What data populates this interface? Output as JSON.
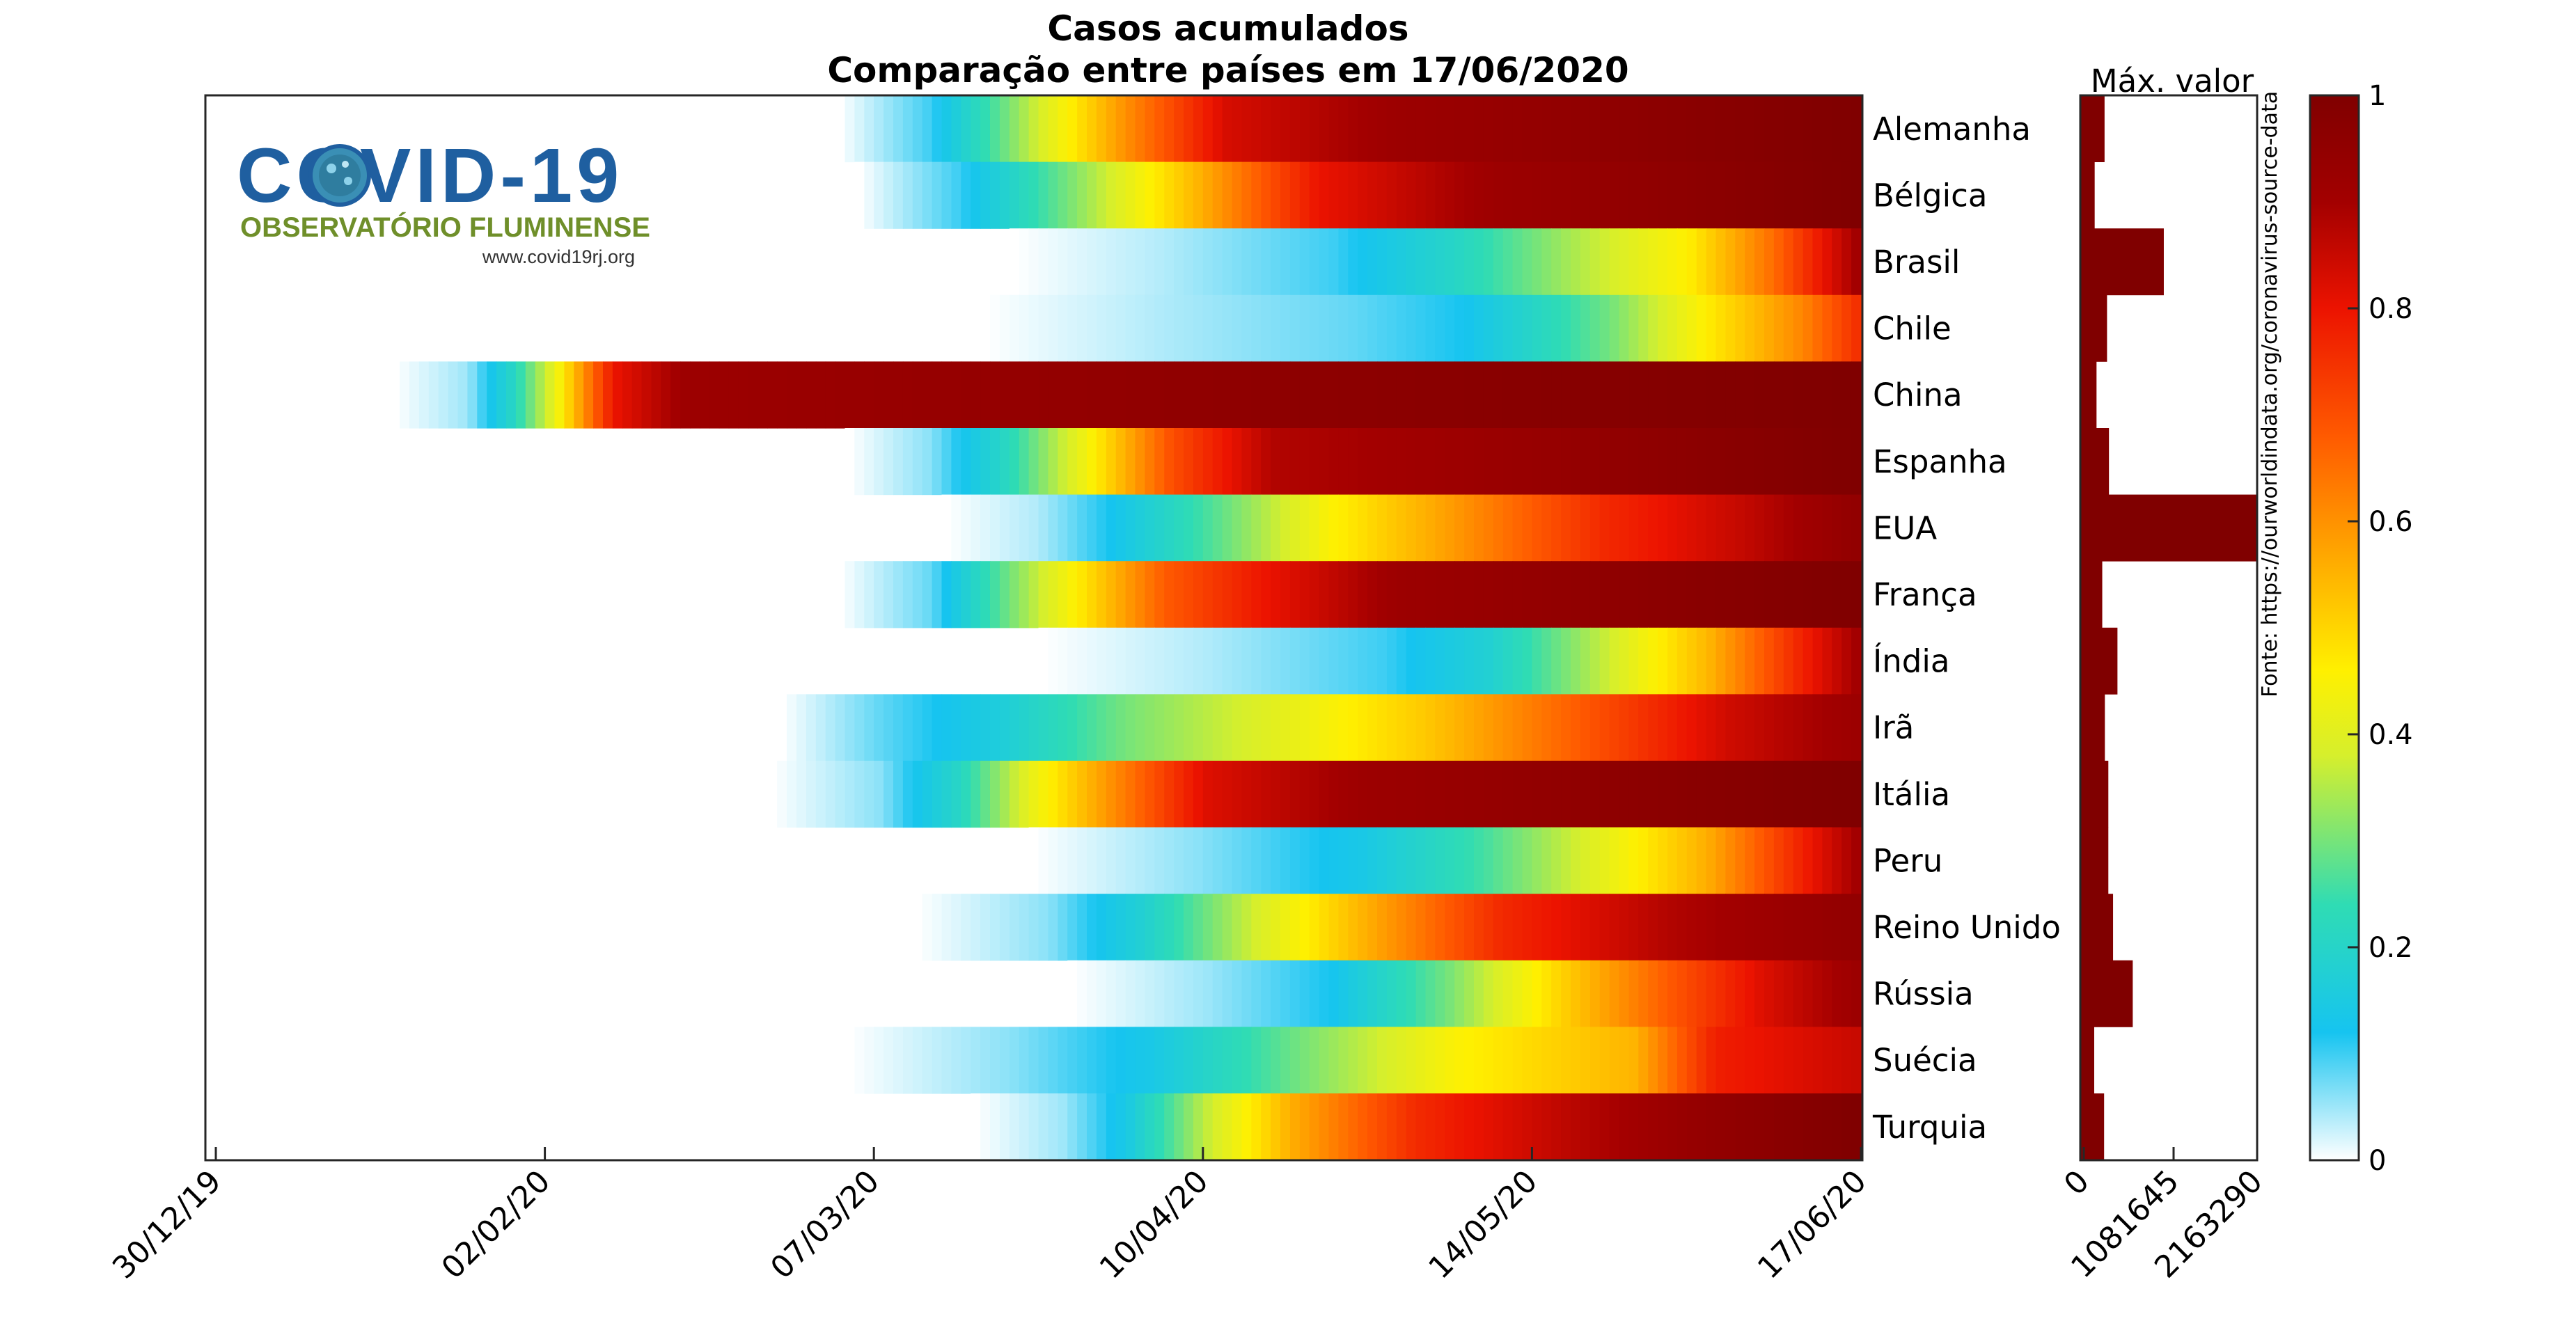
{
  "logo": {
    "title": "COVID-19",
    "subtitle": "OBSERVATÓRIO FLUMINENSE",
    "url": "www.covid19rj.org",
    "colors": {
      "title": "#1f5fa0",
      "subtitle": "#6f8f2a",
      "virus": "#2f7d9f"
    }
  },
  "chart_data": {
    "type": "heatmap",
    "title": "Casos acumulados",
    "subtitle": "Comparação entre países em 17/06/2020",
    "x_tick_labels": [
      "30/12/19",
      "02/02/20",
      "07/03/20",
      "10/04/20",
      "14/05/20",
      "17/06/20"
    ],
    "x_tick_day_offsets": [
      0,
      34,
      68,
      102,
      136,
      170
    ],
    "end_date": "17/06/2020",
    "colorscale": {
      "min": 0,
      "max": 1,
      "ticks": [
        0,
        0.2,
        0.4,
        0.6,
        0.8,
        1
      ],
      "stops": [
        [
          0,
          "#ffffff"
        ],
        [
          0.12,
          "#16c4f0"
        ],
        [
          0.24,
          "#2fdcb4"
        ],
        [
          0.38,
          "#d6ef2c"
        ],
        [
          0.46,
          "#fff000"
        ],
        [
          0.56,
          "#ffad00"
        ],
        [
          0.68,
          "#ff5a00"
        ],
        [
          0.8,
          "#ec1300"
        ],
        [
          0.9,
          "#a30000"
        ],
        [
          1,
          "#800000"
        ]
      ]
    },
    "countries": [
      {
        "name": "Alemanha",
        "start_day": 64,
        "profile": [
          [
            0,
            0
          ],
          [
            0.09,
            0.1
          ],
          [
            0.18,
            0.34
          ],
          [
            0.28,
            0.6
          ],
          [
            0.38,
            0.83
          ],
          [
            0.55,
            0.92
          ],
          [
            1,
            1
          ]
        ]
      },
      {
        "name": "Bélgica",
        "start_day": 66,
        "profile": [
          [
            0,
            0
          ],
          [
            0.1,
            0.1
          ],
          [
            0.22,
            0.32
          ],
          [
            0.34,
            0.55
          ],
          [
            0.46,
            0.8
          ],
          [
            0.64,
            0.92
          ],
          [
            1,
            1
          ]
        ]
      },
      {
        "name": "Brasil",
        "start_day": 82,
        "profile": [
          [
            0,
            0
          ],
          [
            0.18,
            0.04
          ],
          [
            0.38,
            0.1
          ],
          [
            0.52,
            0.2
          ],
          [
            0.66,
            0.34
          ],
          [
            0.8,
            0.46
          ],
          [
            0.9,
            0.65
          ],
          [
            1,
            0.9
          ]
        ]
      },
      {
        "name": "Chile",
        "start_day": 79,
        "profile": [
          [
            0,
            0
          ],
          [
            0.2,
            0.04
          ],
          [
            0.42,
            0.08
          ],
          [
            0.55,
            0.12
          ],
          [
            0.72,
            0.3
          ],
          [
            0.84,
            0.48
          ],
          [
            0.94,
            0.62
          ],
          [
            1,
            0.75
          ]
        ]
      },
      {
        "name": "China",
        "start_day": 18,
        "profile": [
          [
            0,
            0
          ],
          [
            0.05,
            0.05
          ],
          [
            0.08,
            0.2
          ],
          [
            0.11,
            0.42
          ],
          [
            0.15,
            0.8
          ],
          [
            0.2,
            0.92
          ],
          [
            1,
            1
          ]
        ]
      },
      {
        "name": "Espanha",
        "start_day": 65,
        "profile": [
          [
            0,
            0
          ],
          [
            0.08,
            0.06
          ],
          [
            0.15,
            0.2
          ],
          [
            0.23,
            0.42
          ],
          [
            0.32,
            0.7
          ],
          [
            0.42,
            0.88
          ],
          [
            1,
            1
          ]
        ]
      },
      {
        "name": "EUA",
        "start_day": 75,
        "profile": [
          [
            0,
            0
          ],
          [
            0.1,
            0.04
          ],
          [
            0.18,
            0.12
          ],
          [
            0.3,
            0.28
          ],
          [
            0.42,
            0.45
          ],
          [
            0.55,
            0.58
          ],
          [
            0.72,
            0.76
          ],
          [
            0.88,
            0.86
          ],
          [
            1,
            0.95
          ]
        ]
      },
      {
        "name": "França",
        "start_day": 64,
        "profile": [
          [
            0,
            0
          ],
          [
            0.09,
            0.08
          ],
          [
            0.16,
            0.28
          ],
          [
            0.24,
            0.48
          ],
          [
            0.32,
            0.68
          ],
          [
            0.42,
            0.8
          ],
          [
            0.55,
            0.92
          ],
          [
            1,
            1
          ]
        ]
      },
      {
        "name": "Índia",
        "start_day": 85,
        "profile": [
          [
            0,
            0
          ],
          [
            0.2,
            0.04
          ],
          [
            0.42,
            0.1
          ],
          [
            0.55,
            0.18
          ],
          [
            0.7,
            0.38
          ],
          [
            0.82,
            0.55
          ],
          [
            0.92,
            0.75
          ],
          [
            1,
            0.9
          ]
        ]
      },
      {
        "name": "Irã",
        "start_day": 58,
        "profile": [
          [
            0,
            0
          ],
          [
            0.09,
            0.08
          ],
          [
            0.2,
            0.16
          ],
          [
            0.32,
            0.3
          ],
          [
            0.48,
            0.42
          ],
          [
            0.6,
            0.52
          ],
          [
            0.76,
            0.7
          ],
          [
            0.88,
            0.84
          ],
          [
            1,
            0.92
          ]
        ]
      },
      {
        "name": "Itália",
        "start_day": 57,
        "profile": [
          [
            0,
            0
          ],
          [
            0.1,
            0.06
          ],
          [
            0.17,
            0.2
          ],
          [
            0.24,
            0.42
          ],
          [
            0.32,
            0.62
          ],
          [
            0.4,
            0.82
          ],
          [
            0.55,
            0.92
          ],
          [
            1,
            1
          ]
        ]
      },
      {
        "name": "Peru",
        "start_day": 84,
        "profile": [
          [
            0,
            0
          ],
          [
            0.2,
            0.06
          ],
          [
            0.4,
            0.14
          ],
          [
            0.55,
            0.26
          ],
          [
            0.7,
            0.42
          ],
          [
            0.82,
            0.56
          ],
          [
            0.92,
            0.75
          ],
          [
            1,
            0.9
          ]
        ]
      },
      {
        "name": "Reino Unido",
        "start_day": 72,
        "profile": [
          [
            0,
            0
          ],
          [
            0.14,
            0.06
          ],
          [
            0.24,
            0.18
          ],
          [
            0.36,
            0.38
          ],
          [
            0.48,
            0.56
          ],
          [
            0.62,
            0.76
          ],
          [
            0.8,
            0.88
          ],
          [
            1,
            0.95
          ]
        ]
      },
      {
        "name": "Rússia",
        "start_day": 88,
        "profile": [
          [
            0,
            0
          ],
          [
            0.17,
            0.05
          ],
          [
            0.33,
            0.12
          ],
          [
            0.48,
            0.3
          ],
          [
            0.62,
            0.5
          ],
          [
            0.76,
            0.68
          ],
          [
            0.88,
            0.82
          ],
          [
            1,
            0.92
          ]
        ]
      },
      {
        "name": "Suécia",
        "start_day": 65,
        "profile": [
          [
            0,
            0
          ],
          [
            0.16,
            0.06
          ],
          [
            0.3,
            0.14
          ],
          [
            0.45,
            0.3
          ],
          [
            0.6,
            0.45
          ],
          [
            0.78,
            0.55
          ],
          [
            0.86,
            0.78
          ],
          [
            1,
            0.85
          ]
        ]
      },
      {
        "name": "Turquia",
        "start_day": 78,
        "profile": [
          [
            0,
            0
          ],
          [
            0.1,
            0.05
          ],
          [
            0.17,
            0.14
          ],
          [
            0.26,
            0.36
          ],
          [
            0.36,
            0.56
          ],
          [
            0.5,
            0.76
          ],
          [
            0.66,
            0.86
          ],
          [
            0.82,
            0.94
          ],
          [
            1,
            1
          ]
        ]
      }
    ],
    "max_panel": {
      "label": "Máx. valor",
      "xlim": [
        0,
        2163290
      ],
      "ticks": [
        "0",
        "1081645",
        "2163290"
      ],
      "tick_values": [
        0,
        1081645,
        2163290
      ],
      "bar_color": "#800000",
      "values": [
        {
          "country": "Alemanha",
          "value": 188000
        },
        {
          "country": "Bélgica",
          "value": 60000
        },
        {
          "country": "Brasil",
          "value": 955000
        },
        {
          "country": "Chile",
          "value": 220000
        },
        {
          "country": "China",
          "value": 84000
        },
        {
          "country": "Espanha",
          "value": 245000
        },
        {
          "country": "EUA",
          "value": 2163290
        },
        {
          "country": "França",
          "value": 158000
        },
        {
          "country": "Índia",
          "value": 355000
        },
        {
          "country": "Irã",
          "value": 192000
        },
        {
          "country": "Itália",
          "value": 237000
        },
        {
          "country": "Peru",
          "value": 237000
        },
        {
          "country": "Reino Unido",
          "value": 298000
        },
        {
          "country": "Rússia",
          "value": 553000
        },
        {
          "country": "Suécia",
          "value": 54000
        },
        {
          "country": "Turquia",
          "value": 182000
        }
      ]
    },
    "source_note": "Fonte: https://ourworldindata.org/coronavirus-source-data"
  }
}
